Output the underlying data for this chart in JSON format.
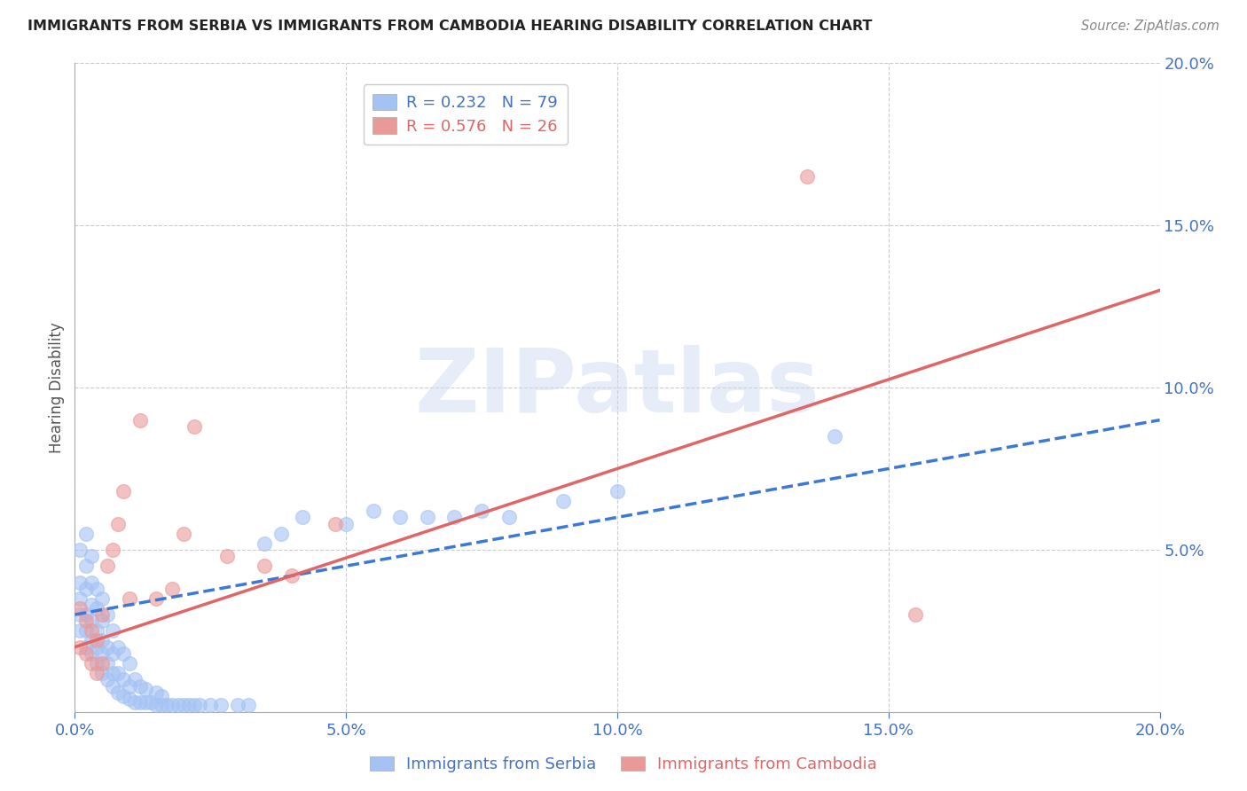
{
  "title": "IMMIGRANTS FROM SERBIA VS IMMIGRANTS FROM CAMBODIA HEARING DISABILITY CORRELATION CHART",
  "source": "Source: ZipAtlas.com",
  "ylabel": "Hearing Disability",
  "xlim": [
    0.0,
    0.2
  ],
  "ylim": [
    0.0,
    0.2
  ],
  "xtick_labels": [
    "0.0%",
    "",
    "",
    "",
    "",
    "5.0%",
    "",
    "",
    "",
    "",
    "10.0%",
    "",
    "",
    "",
    "",
    "15.0%",
    "",
    "",
    "",
    "",
    "20.0%"
  ],
  "xtick_positions": [
    0.0,
    0.01,
    0.02,
    0.03,
    0.04,
    0.05,
    0.06,
    0.07,
    0.08,
    0.09,
    0.1,
    0.11,
    0.12,
    0.13,
    0.14,
    0.15,
    0.16,
    0.17,
    0.18,
    0.19,
    0.2
  ],
  "ytick_labels": [
    "5.0%",
    "10.0%",
    "15.0%",
    "20.0%"
  ],
  "ytick_positions": [
    0.05,
    0.1,
    0.15,
    0.2
  ],
  "serbia_color": "#a4c2f4",
  "cambodia_color": "#ea9999",
  "serbia_R": 0.232,
  "serbia_N": 79,
  "cambodia_R": 0.576,
  "cambodia_N": 26,
  "serbia_line_color": "#3c78d8",
  "cambodia_line_color": "#e06666",
  "serbia_x": [
    0.001,
    0.001,
    0.001,
    0.001,
    0.001,
    0.002,
    0.002,
    0.002,
    0.002,
    0.002,
    0.002,
    0.003,
    0.003,
    0.003,
    0.003,
    0.003,
    0.003,
    0.004,
    0.004,
    0.004,
    0.004,
    0.004,
    0.005,
    0.005,
    0.005,
    0.005,
    0.005,
    0.006,
    0.006,
    0.006,
    0.006,
    0.007,
    0.007,
    0.007,
    0.007,
    0.008,
    0.008,
    0.008,
    0.009,
    0.009,
    0.009,
    0.01,
    0.01,
    0.01,
    0.011,
    0.011,
    0.012,
    0.012,
    0.013,
    0.013,
    0.014,
    0.015,
    0.015,
    0.016,
    0.016,
    0.017,
    0.018,
    0.019,
    0.02,
    0.021,
    0.022,
    0.023,
    0.025,
    0.027,
    0.03,
    0.032,
    0.035,
    0.038,
    0.042,
    0.05,
    0.055,
    0.06,
    0.065,
    0.07,
    0.075,
    0.08,
    0.09,
    0.1,
    0.14
  ],
  "serbia_y": [
    0.025,
    0.03,
    0.035,
    0.04,
    0.05,
    0.02,
    0.025,
    0.03,
    0.038,
    0.045,
    0.055,
    0.018,
    0.022,
    0.028,
    0.033,
    0.04,
    0.048,
    0.015,
    0.02,
    0.025,
    0.032,
    0.038,
    0.012,
    0.018,
    0.022,
    0.028,
    0.035,
    0.01,
    0.015,
    0.02,
    0.03,
    0.008,
    0.012,
    0.018,
    0.025,
    0.006,
    0.012,
    0.02,
    0.005,
    0.01,
    0.018,
    0.004,
    0.008,
    0.015,
    0.003,
    0.01,
    0.003,
    0.008,
    0.003,
    0.007,
    0.003,
    0.002,
    0.006,
    0.002,
    0.005,
    0.002,
    0.002,
    0.002,
    0.002,
    0.002,
    0.002,
    0.002,
    0.002,
    0.002,
    0.002,
    0.002,
    0.052,
    0.055,
    0.06,
    0.058,
    0.062,
    0.06,
    0.06,
    0.06,
    0.062,
    0.06,
    0.065,
    0.068,
    0.085
  ],
  "cambodia_x": [
    0.001,
    0.001,
    0.002,
    0.002,
    0.003,
    0.003,
    0.004,
    0.004,
    0.005,
    0.005,
    0.006,
    0.007,
    0.008,
    0.009,
    0.01,
    0.012,
    0.015,
    0.018,
    0.02,
    0.022,
    0.028,
    0.035,
    0.04,
    0.048,
    0.155,
    0.135
  ],
  "cambodia_y": [
    0.02,
    0.032,
    0.018,
    0.028,
    0.015,
    0.025,
    0.012,
    0.022,
    0.015,
    0.03,
    0.045,
    0.05,
    0.058,
    0.068,
    0.035,
    0.09,
    0.035,
    0.038,
    0.055,
    0.088,
    0.048,
    0.045,
    0.042,
    0.058,
    0.03,
    0.165
  ]
}
